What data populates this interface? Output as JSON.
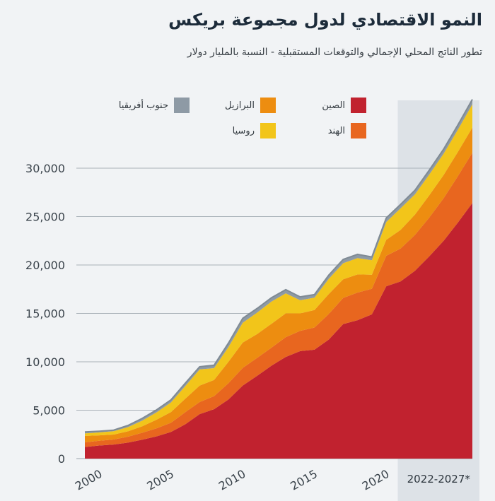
{
  "chart_data": {
    "type": "area",
    "stacked": true,
    "title": "النمو الاقتصادي لدول مجموعة بريكس",
    "subtitle": "تطور الناتج المحلي الإجمالي والتوقعات المستقبلية - النسبة بالمليار دولار",
    "xlabel": "",
    "ylabel": "",
    "x": [
      2000,
      2001,
      2002,
      2003,
      2004,
      2005,
      2006,
      2007,
      2008,
      2009,
      2010,
      2011,
      2012,
      2013,
      2014,
      2015,
      2016,
      2017,
      2018,
      2019,
      2020,
      2021,
      2022,
      2023,
      2024,
      2025,
      2026,
      2027
    ],
    "ylim": [
      0,
      35000
    ],
    "yticks": [
      0,
      5000,
      10000,
      15000,
      20000,
      25000,
      30000
    ],
    "ytick_labels": [
      "0",
      "5,000",
      "10,000",
      "15,000",
      "20,000",
      "25,000",
      "30,000"
    ],
    "xticks": [
      2000,
      2005,
      2010,
      2015,
      2020
    ],
    "xtick_labels": [
      "2000",
      "2005",
      "2010",
      "2015",
      "2020"
    ],
    "forecast_label": "2022-2027*",
    "forecast_start": 2022,
    "grid": true,
    "legend_position": "top",
    "series": [
      {
        "name": "الصين",
        "color": "#c1222f",
        "values": [
          1200,
          1350,
          1450,
          1650,
          1950,
          2300,
          2750,
          3550,
          4600,
          5100,
          6100,
          7550,
          8550,
          9600,
          10500,
          11100,
          11250,
          12300,
          13900,
          14300,
          14900,
          17800,
          18300,
          19400,
          20900,
          22500,
          24400,
          26400
        ]
      },
      {
        "name": "الهند",
        "color": "#e8661f",
        "values": [
          480,
          490,
          520,
          610,
          720,
          830,
          950,
          1250,
          1250,
          1350,
          1680,
          1820,
          1850,
          1860,
          2050,
          2100,
          2290,
          2650,
          2700,
          2850,
          2650,
          3150,
          3400,
          3700,
          4000,
          4400,
          4800,
          5200
        ]
      },
      {
        "name": "البرازيل",
        "color": "#ed8d10",
        "values": [
          660,
          560,
          510,
          560,
          670,
          890,
          1110,
          1400,
          1700,
          1670,
          2210,
          2620,
          2470,
          2470,
          2460,
          1800,
          1800,
          2060,
          1920,
          1870,
          1450,
          1650,
          1920,
          2100,
          2300,
          2400,
          2500,
          2600
        ]
      },
      {
        "name": "روسيا",
        "color": "#f2c51a",
        "values": [
          260,
          310,
          350,
          430,
          590,
          760,
          990,
          1300,
          1660,
          1220,
          1520,
          2050,
          2210,
          2290,
          2060,
          1360,
          1280,
          1570,
          1660,
          1690,
          1490,
          1840,
          2240,
          2100,
          2150,
          2200,
          2300,
          2400
        ]
      },
      {
        "name": "جنوب أفريقيا",
        "color": "#8e9aa5",
        "values": [
          150,
          120,
          115,
          175,
          230,
          260,
          270,
          300,
          290,
          300,
          420,
          460,
          430,
          400,
          380,
          350,
          320,
          380,
          400,
          390,
          340,
          420,
          400,
          420,
          450,
          470,
          490,
          510
        ]
      }
    ]
  }
}
